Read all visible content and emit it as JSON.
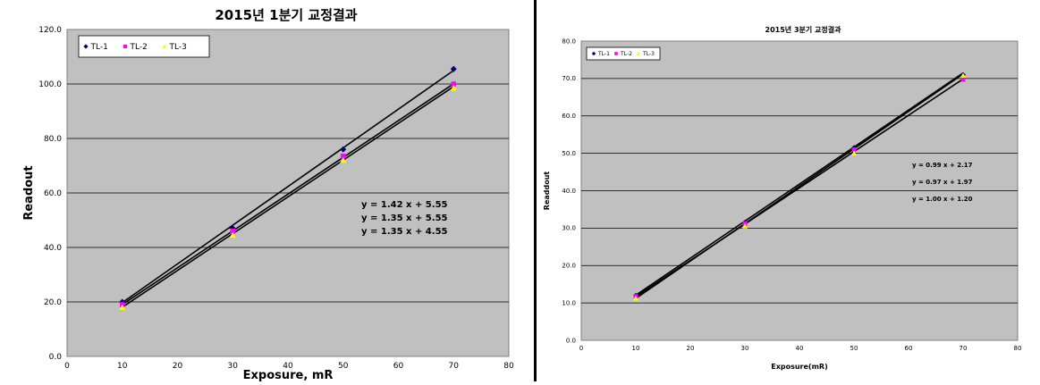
{
  "charts": {
    "left": {
      "title": "2015년 1분기 교정결과",
      "xlabel": "Exposure, mR",
      "ylabel": "Readout",
      "equations": [
        "y = 1.42 x + 5.55",
        "y = 1.35 x + 5.55",
        "y = 1.35 x + 4.55"
      ]
    },
    "right": {
      "title": "2015년 3분기 교정결과",
      "xlabel": "Exposure(mR)",
      "ylabel": "Readdout",
      "equations": [
        "y = 0.99 x + 2.17",
        "y = 0.97 x + 1.97",
        "y = 1.00 x + 1.20"
      ]
    }
  },
  "chart_data": [
    {
      "type": "scatter",
      "title": "2015년 1분기 교정결과",
      "xlabel": "Exposure, mR",
      "ylabel": "Readout",
      "xlim": [
        0,
        80
      ],
      "ylim": [
        0,
        120
      ],
      "xticks": [
        "0",
        "10",
        "20",
        "30",
        "40",
        "50",
        "60",
        "70",
        "80"
      ],
      "yticks": [
        "0.0",
        "20.0",
        "40.0",
        "60.0",
        "80.0",
        "100.0",
        "120.0"
      ],
      "grid": true,
      "legend_position": "top-left",
      "background_color": "#c0c0c0",
      "x": [
        10,
        30,
        50,
        70
      ],
      "series": [
        {
          "name": "TL-1",
          "color": "#000080",
          "marker": "diamond",
          "values": [
            20.0,
            47.0,
            76.0,
            105.5
          ],
          "trend": [
            1.42,
            5.55
          ]
        },
        {
          "name": "TL-2",
          "color": "#ff00ff",
          "marker": "square",
          "values": [
            19.0,
            46.0,
            73.5,
            100.0
          ],
          "trend": [
            1.35,
            5.55
          ]
        },
        {
          "name": "TL-3",
          "color": "#ffff00",
          "marker": "triangle",
          "values": [
            18.0,
            44.5,
            72.0,
            98.5
          ],
          "trend": [
            1.35,
            4.55
          ]
        }
      ],
      "annotations": [
        "y = 1.42 x + 5.55",
        "y = 1.35 x + 5.55",
        "y = 1.35 x + 4.55"
      ]
    },
    {
      "type": "scatter",
      "title": "2015년 3분기 교정결과",
      "xlabel": "Exposure(mR)",
      "ylabel": "Readdout",
      "xlim": [
        0,
        80
      ],
      "ylim": [
        0,
        80
      ],
      "xticks": [
        "0",
        "10",
        "20",
        "30",
        "40",
        "50",
        "60",
        "70",
        "80"
      ],
      "yticks": [
        "0.0",
        "10.0",
        "20.0",
        "30.0",
        "40.0",
        "50.0",
        "60.0",
        "70.0",
        "80.0"
      ],
      "grid": true,
      "legend_position": "top-left",
      "background_color": "#c0c0c0",
      "x": [
        10,
        30,
        50,
        70
      ],
      "series": [
        {
          "name": "TL-1",
          "color": "#000080",
          "marker": "diamond",
          "values": [
            12.0,
            31.5,
            51.5,
            71.0
          ],
          "trend": [
            0.99,
            2.17
          ]
        },
        {
          "name": "TL-2",
          "color": "#ff00ff",
          "marker": "square",
          "values": [
            11.8,
            31.2,
            51.0,
            69.7
          ],
          "trend": [
            0.97,
            1.97
          ]
        },
        {
          "name": "TL-3",
          "color": "#ffff00",
          "marker": "triangle",
          "values": [
            11.2,
            30.5,
            50.0,
            70.8
          ],
          "trend": [
            1.0,
            1.2
          ]
        }
      ],
      "annotations": [
        "y = 0.99 x + 2.17",
        "y = 0.97 x + 1.97",
        "y = 1.00 x + 1.20"
      ]
    }
  ]
}
